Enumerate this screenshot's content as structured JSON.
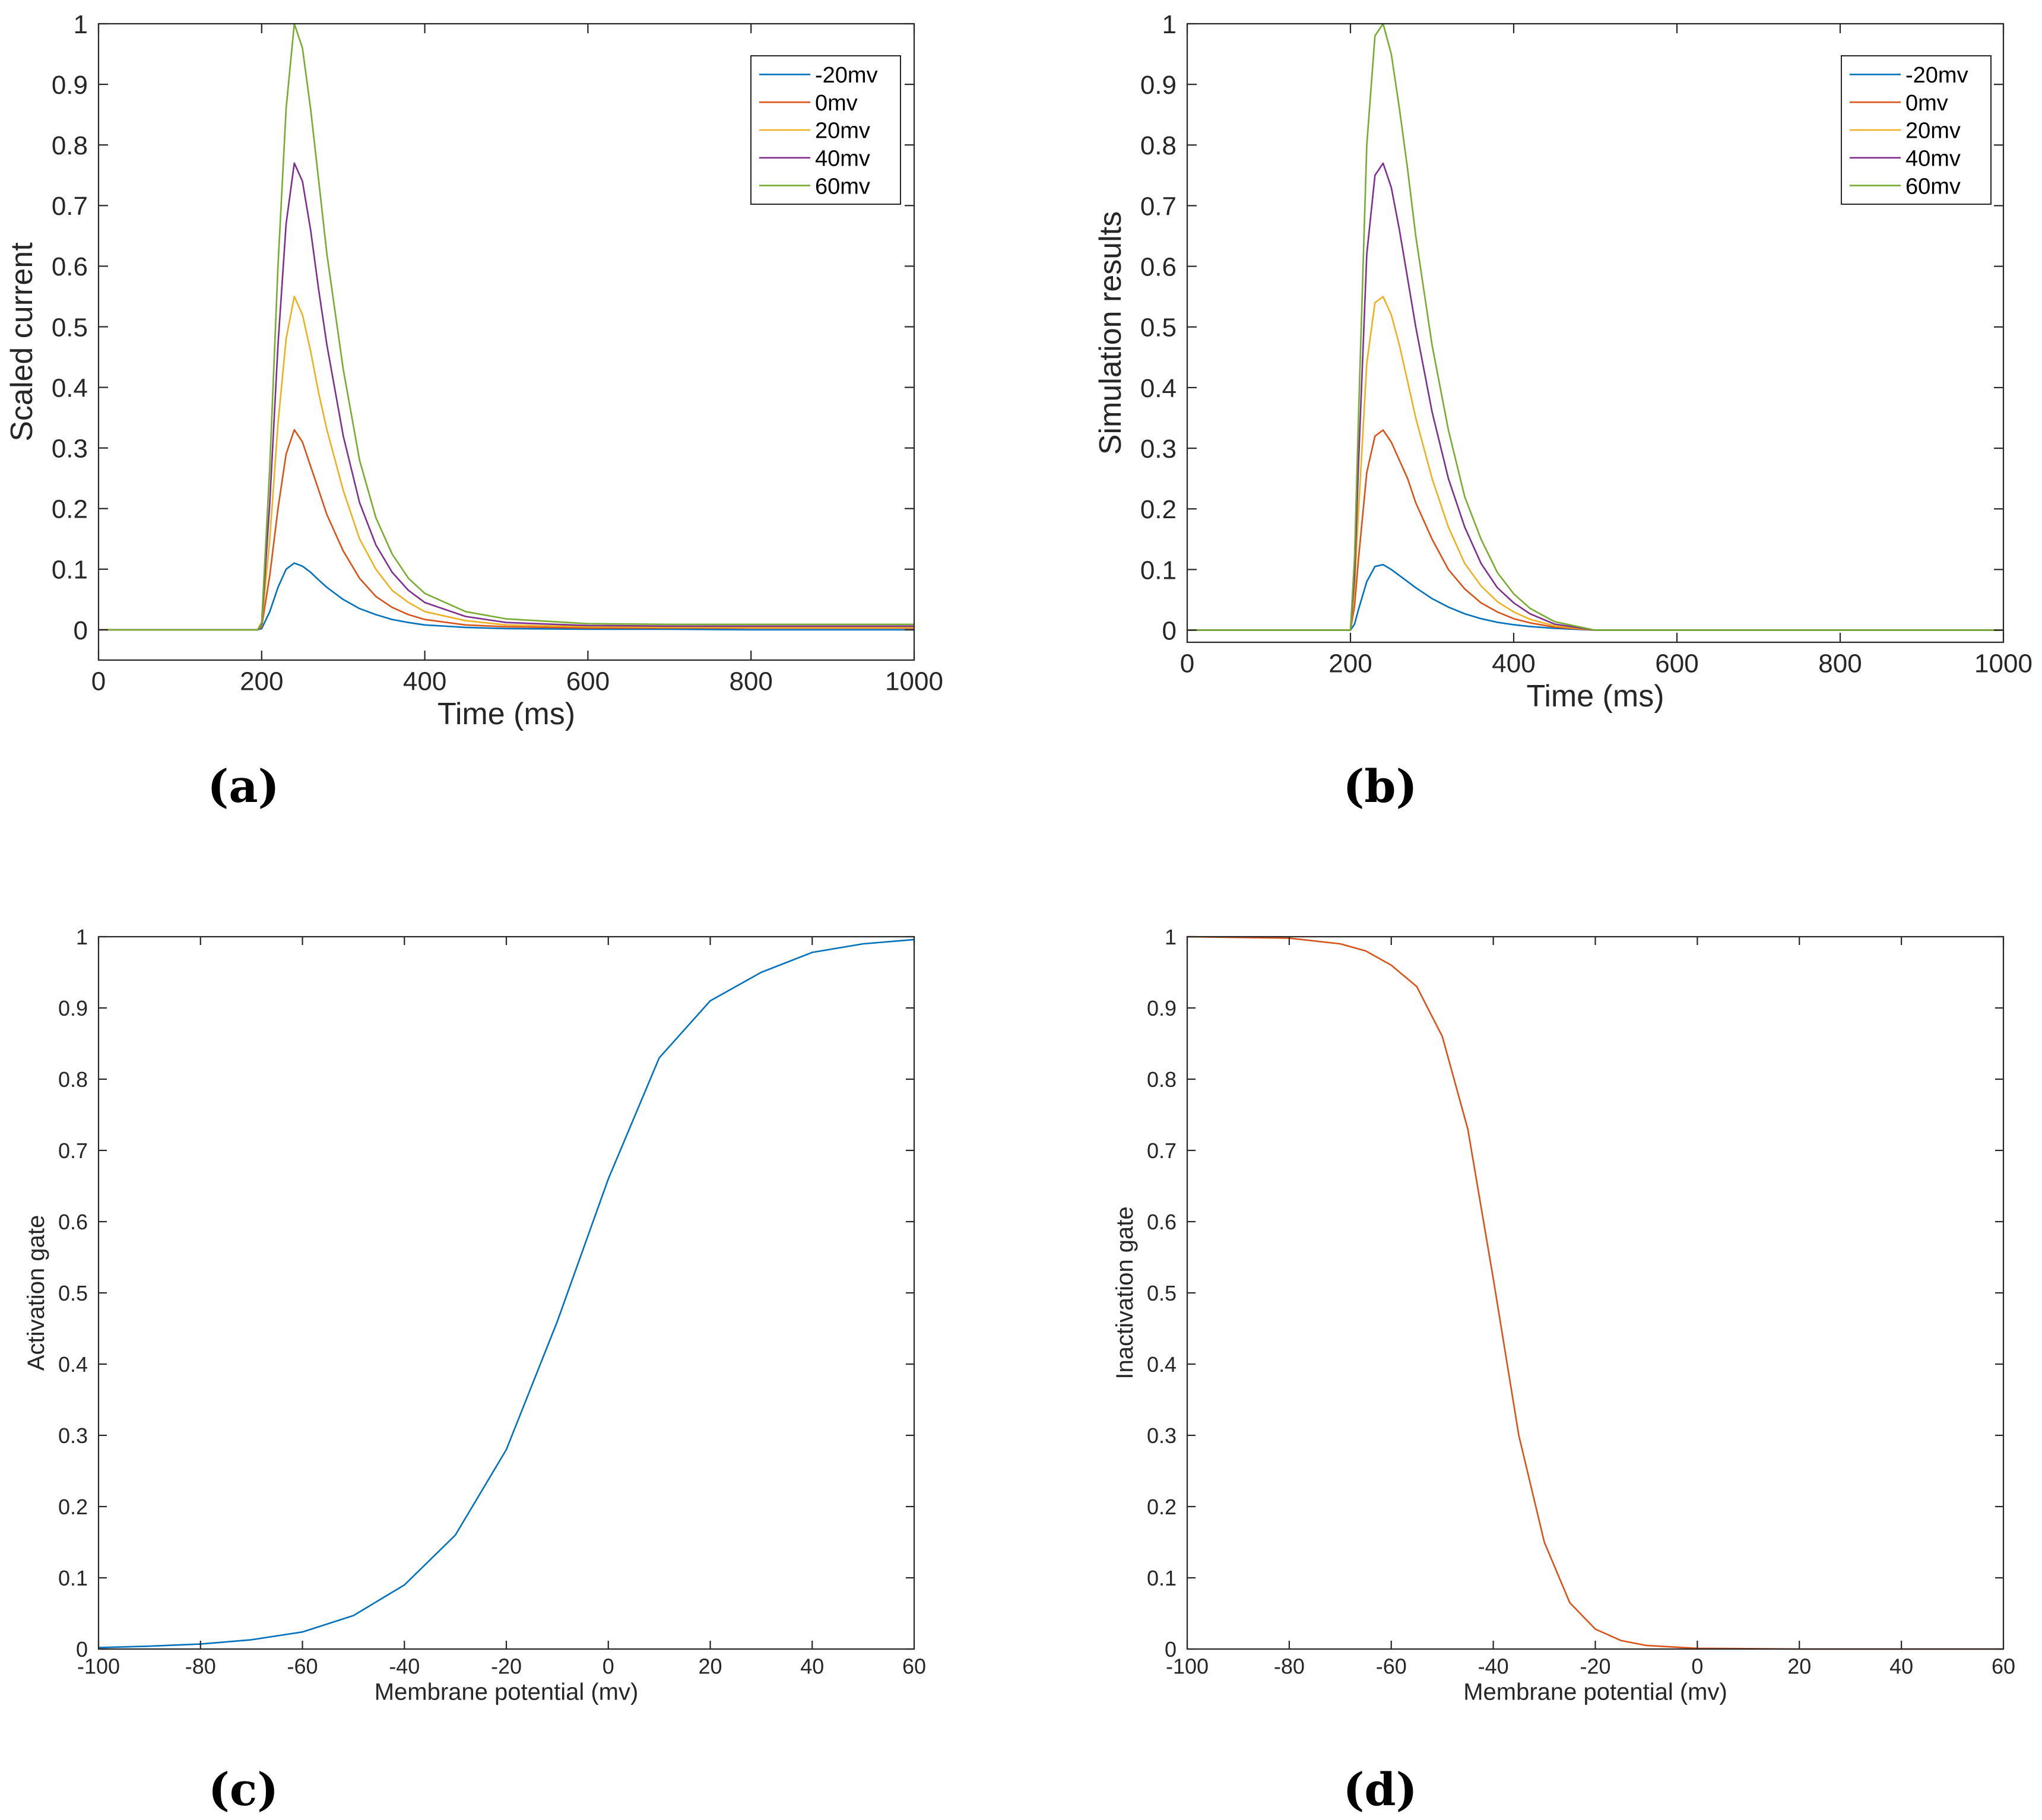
{
  "figure": {
    "panels": [
      {
        "id": "a",
        "caption": "(a)"
      },
      {
        "id": "b",
        "caption": "(b)"
      },
      {
        "id": "c",
        "caption": "(c)"
      },
      {
        "id": "d",
        "caption": "(d)"
      }
    ]
  },
  "colors": {
    "series": [
      "#0072BD",
      "#D95319",
      "#EDB120",
      "#7E2F8E",
      "#77AC30"
    ],
    "axis": "#262626"
  },
  "chart_data": [
    {
      "id": "a",
      "type": "line",
      "title": "",
      "xlabel": "Time (ms)",
      "ylabel": "Scaled current",
      "xlim": [
        0,
        1000
      ],
      "ylim": [
        -0.05,
        1
      ],
      "xticks": [
        0,
        200,
        400,
        600,
        800,
        1000
      ],
      "yticks": [
        0,
        0.1,
        0.2,
        0.3,
        0.4,
        0.5,
        0.6,
        0.7,
        0.8,
        0.9,
        1
      ],
      "grid": false,
      "legend": "top-right",
      "x": [
        0,
        195,
        200,
        210,
        220,
        230,
        240,
        250,
        260,
        270,
        280,
        300,
        320,
        340,
        360,
        380,
        400,
        450,
        500,
        600,
        700,
        800,
        900,
        1000
      ],
      "series": [
        {
          "name": "-20mv",
          "values": [
            0,
            0,
            0.002,
            0.03,
            0.07,
            0.1,
            0.11,
            0.105,
            0.095,
            0.082,
            0.07,
            0.05,
            0.035,
            0.025,
            0.017,
            0.012,
            0.008,
            0.004,
            0.002,
            0.001,
            0.001,
            0.0,
            0.0,
            0.0
          ]
        },
        {
          "name": "0mv",
          "values": [
            0,
            0,
            0.005,
            0.09,
            0.2,
            0.29,
            0.33,
            0.31,
            0.27,
            0.23,
            0.19,
            0.13,
            0.085,
            0.055,
            0.037,
            0.025,
            0.017,
            0.008,
            0.005,
            0.003,
            0.003,
            0.003,
            0.003,
            0.003
          ]
        },
        {
          "name": "20mv",
          "values": [
            0,
            0,
            0.008,
            0.15,
            0.34,
            0.48,
            0.55,
            0.52,
            0.46,
            0.39,
            0.33,
            0.23,
            0.15,
            0.1,
            0.065,
            0.045,
            0.03,
            0.015,
            0.008,
            0.005,
            0.004,
            0.004,
            0.004,
            0.004
          ]
        },
        {
          "name": "40mv",
          "values": [
            0,
            0,
            0.01,
            0.21,
            0.47,
            0.67,
            0.77,
            0.74,
            0.66,
            0.56,
            0.47,
            0.32,
            0.21,
            0.14,
            0.095,
            0.065,
            0.045,
            0.022,
            0.012,
            0.007,
            0.006,
            0.006,
            0.006,
            0.006
          ]
        },
        {
          "name": "60mv",
          "values": [
            0,
            0,
            0.012,
            0.27,
            0.6,
            0.86,
            1.0,
            0.96,
            0.86,
            0.74,
            0.62,
            0.43,
            0.28,
            0.185,
            0.125,
            0.085,
            0.06,
            0.03,
            0.018,
            0.01,
            0.009,
            0.009,
            0.009,
            0.009
          ]
        }
      ]
    },
    {
      "id": "b",
      "type": "line",
      "title": "",
      "xlabel": "Time (ms)",
      "ylabel": "Simulation results",
      "xlim": [
        0,
        1000
      ],
      "ylim": [
        -0.02,
        1
      ],
      "xticks": [
        0,
        200,
        400,
        600,
        800,
        1000
      ],
      "yticks": [
        0,
        0.1,
        0.2,
        0.3,
        0.4,
        0.5,
        0.6,
        0.7,
        0.8,
        0.9,
        1
      ],
      "grid": false,
      "legend": "top-right",
      "x": [
        0,
        200,
        205,
        210,
        220,
        230,
        240,
        250,
        260,
        270,
        280,
        300,
        320,
        340,
        360,
        380,
        400,
        420,
        450,
        500,
        600,
        1000
      ],
      "series": [
        {
          "name": "-20mv",
          "values": [
            0,
            0,
            0.01,
            0.035,
            0.08,
            0.105,
            0.108,
            0.1,
            0.09,
            0.08,
            0.07,
            0.052,
            0.038,
            0.027,
            0.019,
            0.013,
            0.009,
            0.006,
            0.003,
            0.0,
            0,
            0
          ]
        },
        {
          "name": "0mv",
          "values": [
            0,
            0,
            0.04,
            0.12,
            0.26,
            0.32,
            0.33,
            0.31,
            0.28,
            0.25,
            0.21,
            0.15,
            0.1,
            0.068,
            0.045,
            0.03,
            0.019,
            0.012,
            0.005,
            0.0,
            0,
            0
          ]
        },
        {
          "name": "20mv",
          "values": [
            0,
            0,
            0.07,
            0.2,
            0.44,
            0.54,
            0.55,
            0.52,
            0.47,
            0.41,
            0.35,
            0.25,
            0.17,
            0.11,
            0.073,
            0.047,
            0.03,
            0.018,
            0.007,
            0.0,
            0,
            0
          ]
        },
        {
          "name": "40mv",
          "values": [
            0,
            0,
            0.09,
            0.28,
            0.62,
            0.75,
            0.77,
            0.73,
            0.66,
            0.58,
            0.5,
            0.36,
            0.25,
            0.17,
            0.11,
            0.07,
            0.045,
            0.027,
            0.01,
            0.0,
            0,
            0
          ]
        },
        {
          "name": "60mv",
          "values": [
            0,
            0,
            0.12,
            0.36,
            0.8,
            0.98,
            1.0,
            0.95,
            0.86,
            0.76,
            0.65,
            0.47,
            0.33,
            0.22,
            0.15,
            0.095,
            0.06,
            0.036,
            0.014,
            0.0,
            0,
            0
          ]
        }
      ]
    },
    {
      "id": "c",
      "type": "line",
      "title": "",
      "xlabel": "Membrane potential (mv)",
      "ylabel": "Activation gate",
      "xlim": [
        -100,
        60
      ],
      "ylim": [
        0,
        1
      ],
      "xticks": [
        -100,
        -80,
        -60,
        -40,
        -20,
        0,
        20,
        40,
        60
      ],
      "yticks": [
        0,
        0.1,
        0.2,
        0.3,
        0.4,
        0.5,
        0.6,
        0.7,
        0.8,
        0.9,
        1
      ],
      "grid": false,
      "legend": "none",
      "x": [
        -100,
        -90,
        -80,
        -70,
        -60,
        -50,
        -40,
        -30,
        -20,
        -10,
        0,
        10,
        20,
        30,
        40,
        50,
        60
      ],
      "series": [
        {
          "values": [
            0.002,
            0.004,
            0.007,
            0.013,
            0.024,
            0.047,
            0.09,
            0.16,
            0.28,
            0.46,
            0.66,
            0.83,
            0.91,
            0.95,
            0.978,
            0.99,
            0.996
          ]
        }
      ]
    },
    {
      "id": "d",
      "type": "line",
      "title": "",
      "xlabel": "Membrane potential (mv)",
      "ylabel": "Inactivation gate",
      "xlim": [
        -100,
        60
      ],
      "ylim": [
        0,
        1
      ],
      "xticks": [
        -100,
        -80,
        -60,
        -40,
        -20,
        0,
        20,
        40,
        60
      ],
      "yticks": [
        0,
        0.1,
        0.2,
        0.3,
        0.4,
        0.5,
        0.6,
        0.7,
        0.8,
        0.9,
        1
      ],
      "grid": false,
      "legend": "none",
      "x": [
        -100,
        -80,
        -70,
        -65,
        -60,
        -55,
        -50,
        -45,
        -40,
        -35,
        -30,
        -25,
        -20,
        -15,
        -10,
        0,
        20,
        40,
        60
      ],
      "series": [
        {
          "values": [
            1.0,
            0.998,
            0.99,
            0.98,
            0.96,
            0.93,
            0.86,
            0.73,
            0.52,
            0.3,
            0.15,
            0.065,
            0.028,
            0.012,
            0.005,
            0.001,
            0.0,
            0.0,
            0.0
          ]
        }
      ]
    }
  ]
}
